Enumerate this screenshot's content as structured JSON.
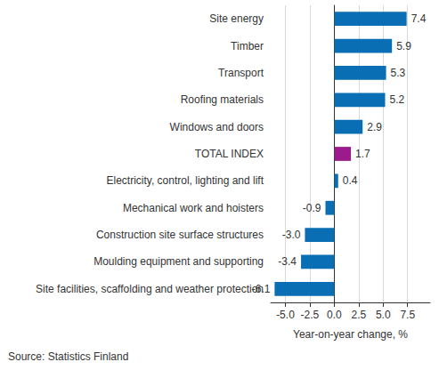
{
  "chart_data": {
    "type": "bar",
    "orientation": "horizontal",
    "categories": [
      "Site energy",
      "Timber",
      "Transport",
      "Roofing materials",
      "Windows and doors",
      "TOTAL INDEX",
      "Electricity, control, lighting and lift",
      "Mechanical work and hoisters",
      "Construction site surface structures",
      "Moulding equipment and supporting",
      "Site facilities, scaffolding and weather protection"
    ],
    "values": [
      7.4,
      5.9,
      5.3,
      5.2,
      2.9,
      1.7,
      0.4,
      -0.9,
      -3.0,
      -3.4,
      -6.1
    ],
    "value_labels": [
      "7.4",
      "5.9",
      "5.3",
      "5.2",
      "2.9",
      "1.7",
      "0.4",
      "-0.9",
      "-3.0",
      "-3.4",
      "-6.1"
    ],
    "colors": [
      "#0a6eb4",
      "#0a6eb4",
      "#0a6eb4",
      "#0a6eb4",
      "#0a6eb4",
      "#9b1b8c",
      "#0a6eb4",
      "#0a6eb4",
      "#0a6eb4",
      "#0a6eb4",
      "#0a6eb4"
    ],
    "xlabel": "Year-on-year change, %",
    "source": "Source: Statistics Finland",
    "xlim": [
      -6.5,
      9.8
    ],
    "xticks": [
      {
        "value": -5,
        "label": "-5.0"
      },
      {
        "value": -2.5,
        "label": "-2.5"
      },
      {
        "value": 0,
        "label": "0.0"
      },
      {
        "value": 2.5,
        "label": "2.5"
      },
      {
        "value": 5,
        "label": "5.0"
      },
      {
        "value": 7.5,
        "label": "7.5"
      }
    ],
    "grid": true,
    "data_labels": true
  }
}
